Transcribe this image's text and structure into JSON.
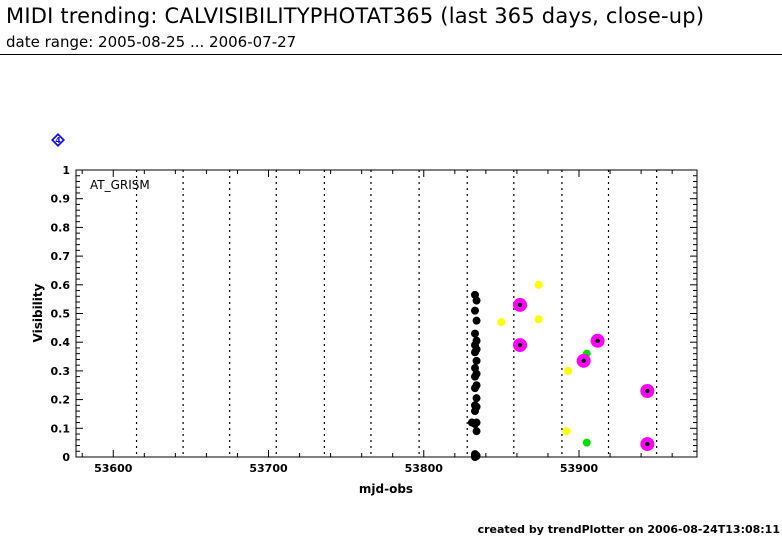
{
  "header": {
    "title": "MIDI trending: CALVISIBILITYPHOTAT365 (last 365 days, close-up)",
    "subtitle": "date range: 2005-08-25 ... 2006-07-27"
  },
  "footer": {
    "text": "created by trendPlotter on 2006-08-24T13:08:11"
  },
  "badge": {
    "label": "4",
    "color": "#1010e0"
  },
  "chart_data": {
    "type": "scatter",
    "xlabel": "mjd-obs",
    "ylabel": "Visibility",
    "xlim": [
      53576,
      53976
    ],
    "ylim": [
      0,
      1
    ],
    "xticks": [
      53600,
      53700,
      53800,
      53900
    ],
    "yticks": [
      0,
      0.1,
      0.2,
      0.3,
      0.4,
      0.5,
      0.6,
      0.7,
      0.8,
      0.9,
      1
    ],
    "ytick_labels": [
      "0",
      "0.1",
      "0.2",
      "0.3",
      "0.4",
      "0.5",
      "0.6",
      "0.7",
      "0.8",
      "0.9",
      "1"
    ],
    "annotation": "AT_GRISM",
    "grid": "dotted vertical lines",
    "vlines": [
      53615,
      53645,
      53675,
      53705,
      53736,
      53766,
      53797,
      53828,
      53858,
      53889,
      53919,
      53950
    ],
    "series": [
      {
        "color": "#000000",
        "marker": "dot",
        "x": [
          53833,
          53834,
          53833,
          53834,
          53833,
          53834,
          53833,
          53834,
          53833,
          53834,
          53833,
          53834,
          53833,
          53834,
          53833,
          53834,
          53833,
          53834,
          53833,
          53834,
          53833,
          53834,
          53833,
          53834,
          53831,
          53833,
          53834,
          53833
        ],
        "y": [
          0.565,
          0.545,
          0.51,
          0.475,
          0.43,
          0.405,
          0.39,
          0.375,
          0.365,
          0.335,
          0.31,
          0.29,
          0.28,
          0.25,
          0.24,
          0.205,
          0.18,
          0.175,
          0.16,
          0.12,
          0.115,
          0.09,
          0.01,
          0.005,
          0.12,
          0.0,
          0.003,
          0.006
        ]
      },
      {
        "color": "#ffff00",
        "marker": "dot",
        "x": [
          53850,
          53874,
          53874,
          53893,
          53892
        ],
        "y": [
          0.47,
          0.6,
          0.48,
          0.3,
          0.09
        ]
      },
      {
        "color": "#00dd00",
        "marker": "dot",
        "x": [
          53905,
          53905
        ],
        "y": [
          0.36,
          0.05
        ]
      },
      {
        "color": "#ff00ff",
        "marker": "ringed-dot",
        "x": [
          53862,
          53862,
          53903,
          53912,
          53944,
          53944
        ],
        "y": [
          0.53,
          0.39,
          0.335,
          0.405,
          0.23,
          0.045
        ]
      }
    ]
  }
}
